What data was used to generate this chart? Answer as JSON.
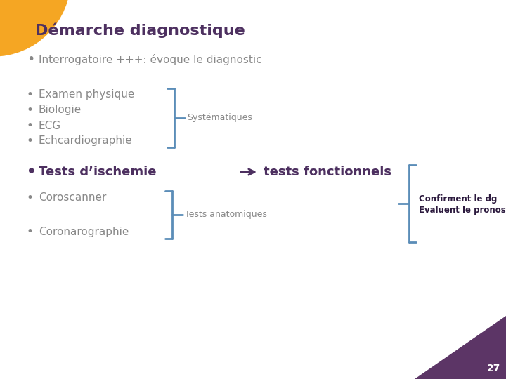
{
  "title": "Démarche diagnostique",
  "title_color": "#4d3060",
  "title_fontsize": 16,
  "bg_color": "#ffffff",
  "bullet_color": "#888888",
  "bullet_color2": "#4d3060",
  "brace_color": "#5b8db8",
  "arrow_color": "#4d3060",
  "line1": "Interrogatoire +++: évoque le diagnostic",
  "bullets_group1": [
    "Examen physique",
    "Biologie",
    "ECG",
    "Echcardiographie"
  ],
  "label_group1": "Systématiques",
  "line_tests": "Tests d’ischemie",
  "line_tests2": "tests fonctionnels",
  "bullets_group2": [
    "Coroscanner",
    "Coronarographie"
  ],
  "label_group2": "Tests anatomiques",
  "label_group3_line1": "Confirment le dg",
  "label_group3_line2": "Evaluent le pronostic",
  "page_number": "27",
  "orange_circle_color": "#f5a623",
  "purple_corner_color": "#5c3566"
}
